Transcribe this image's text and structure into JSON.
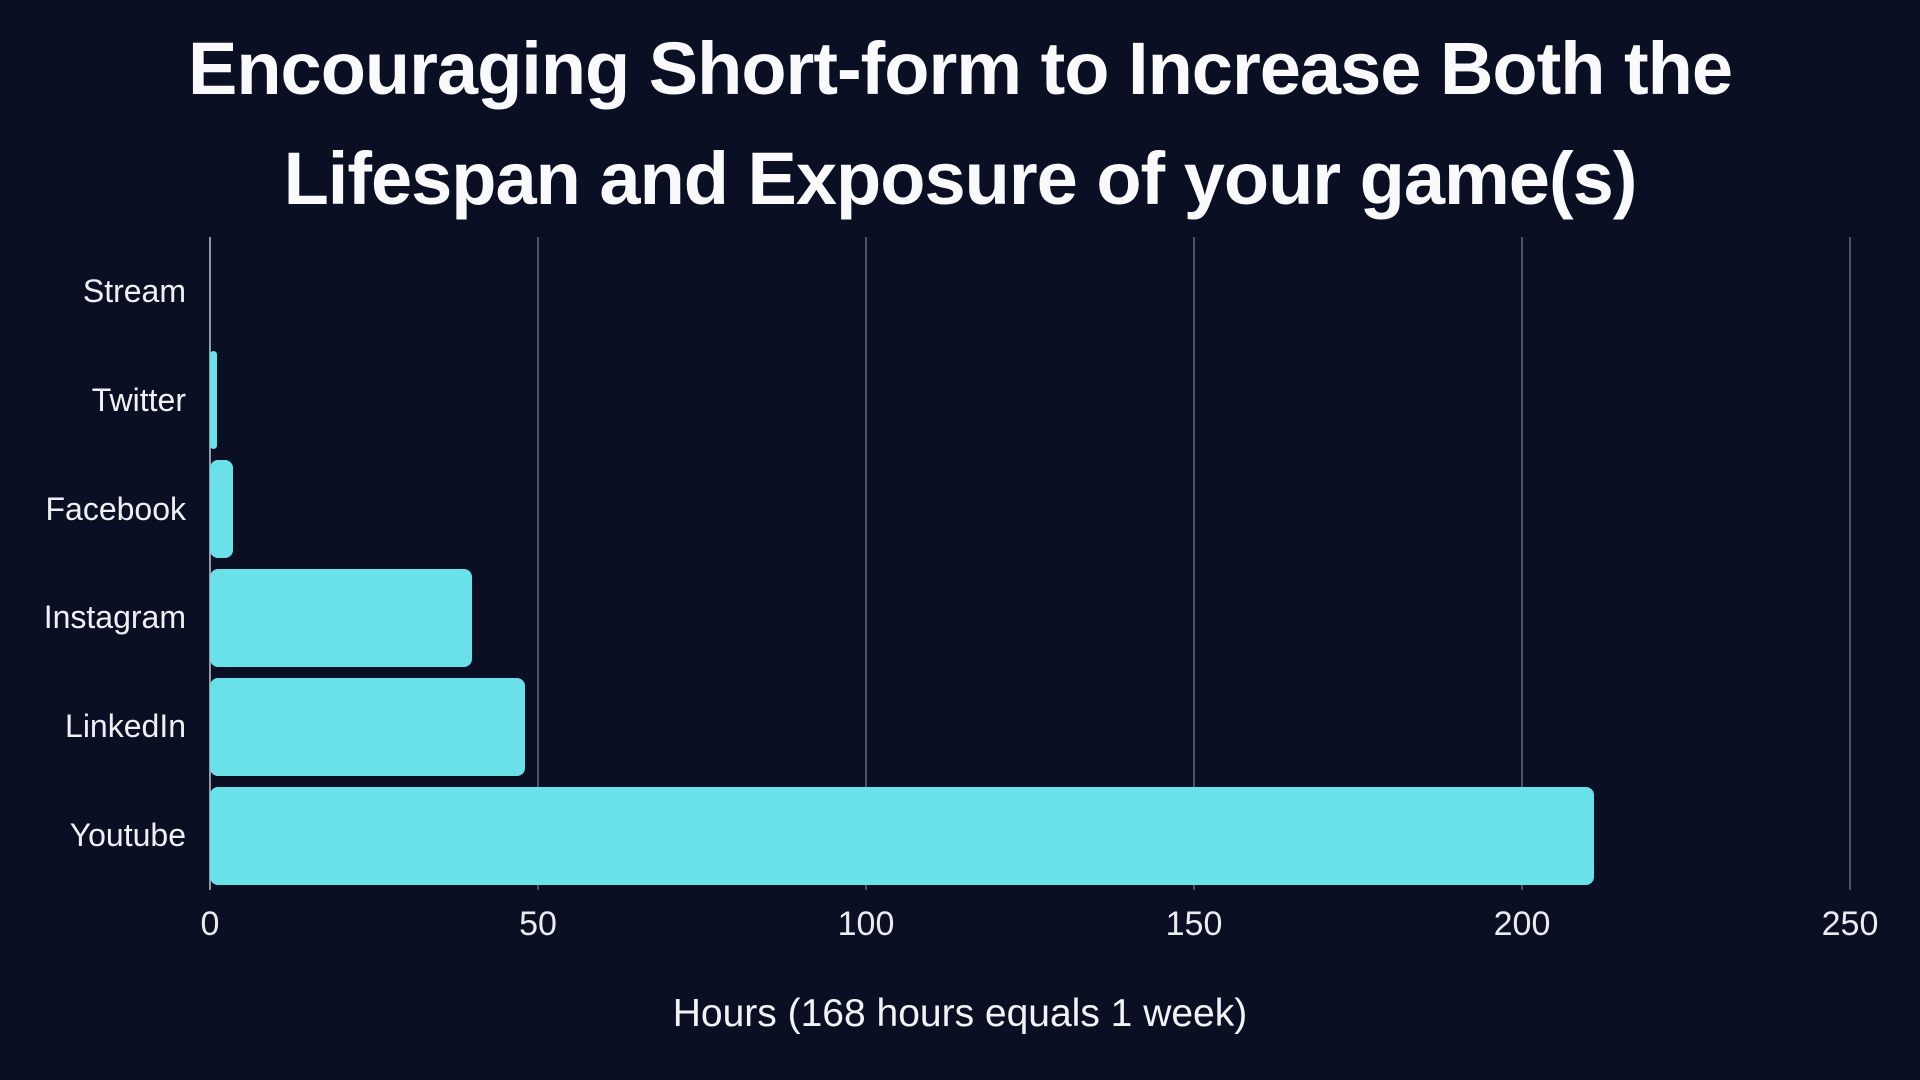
{
  "header": {
    "title": "Encouraging Short-form to Increase Both the Lifespan and Exposure of your game(s)",
    "title_lines": [
      "Encouraging Short-form to Increase Both the",
      "Lifespan and Exposure of your game(s)"
    ]
  },
  "chart_data": {
    "type": "bar",
    "orientation": "horizontal",
    "title": "Encouraging Short-form to Increase Both the Lifespan and Exposure of your game(s)",
    "categories": [
      "Stream",
      "Twitter",
      "Facebook",
      "Instagram",
      "LinkedIn",
      "Youtube"
    ],
    "values": [
      0,
      1,
      3.5,
      40,
      48,
      211
    ],
    "xlabel": "Hours (168 hours equals 1 week)",
    "ylabel": "",
    "xlim": [
      0,
      250
    ],
    "xticks": [
      0,
      50,
      100,
      150,
      200,
      250
    ],
    "grid": "vertical-gridlines-on",
    "legend": false,
    "colors": {
      "background": "#0a0f24",
      "bar": "#6ae1e8",
      "gridline": "#4e5569",
      "axis_line": "#9099a8",
      "text": "#f2f3f6",
      "title_text": "#fafafc"
    }
  }
}
